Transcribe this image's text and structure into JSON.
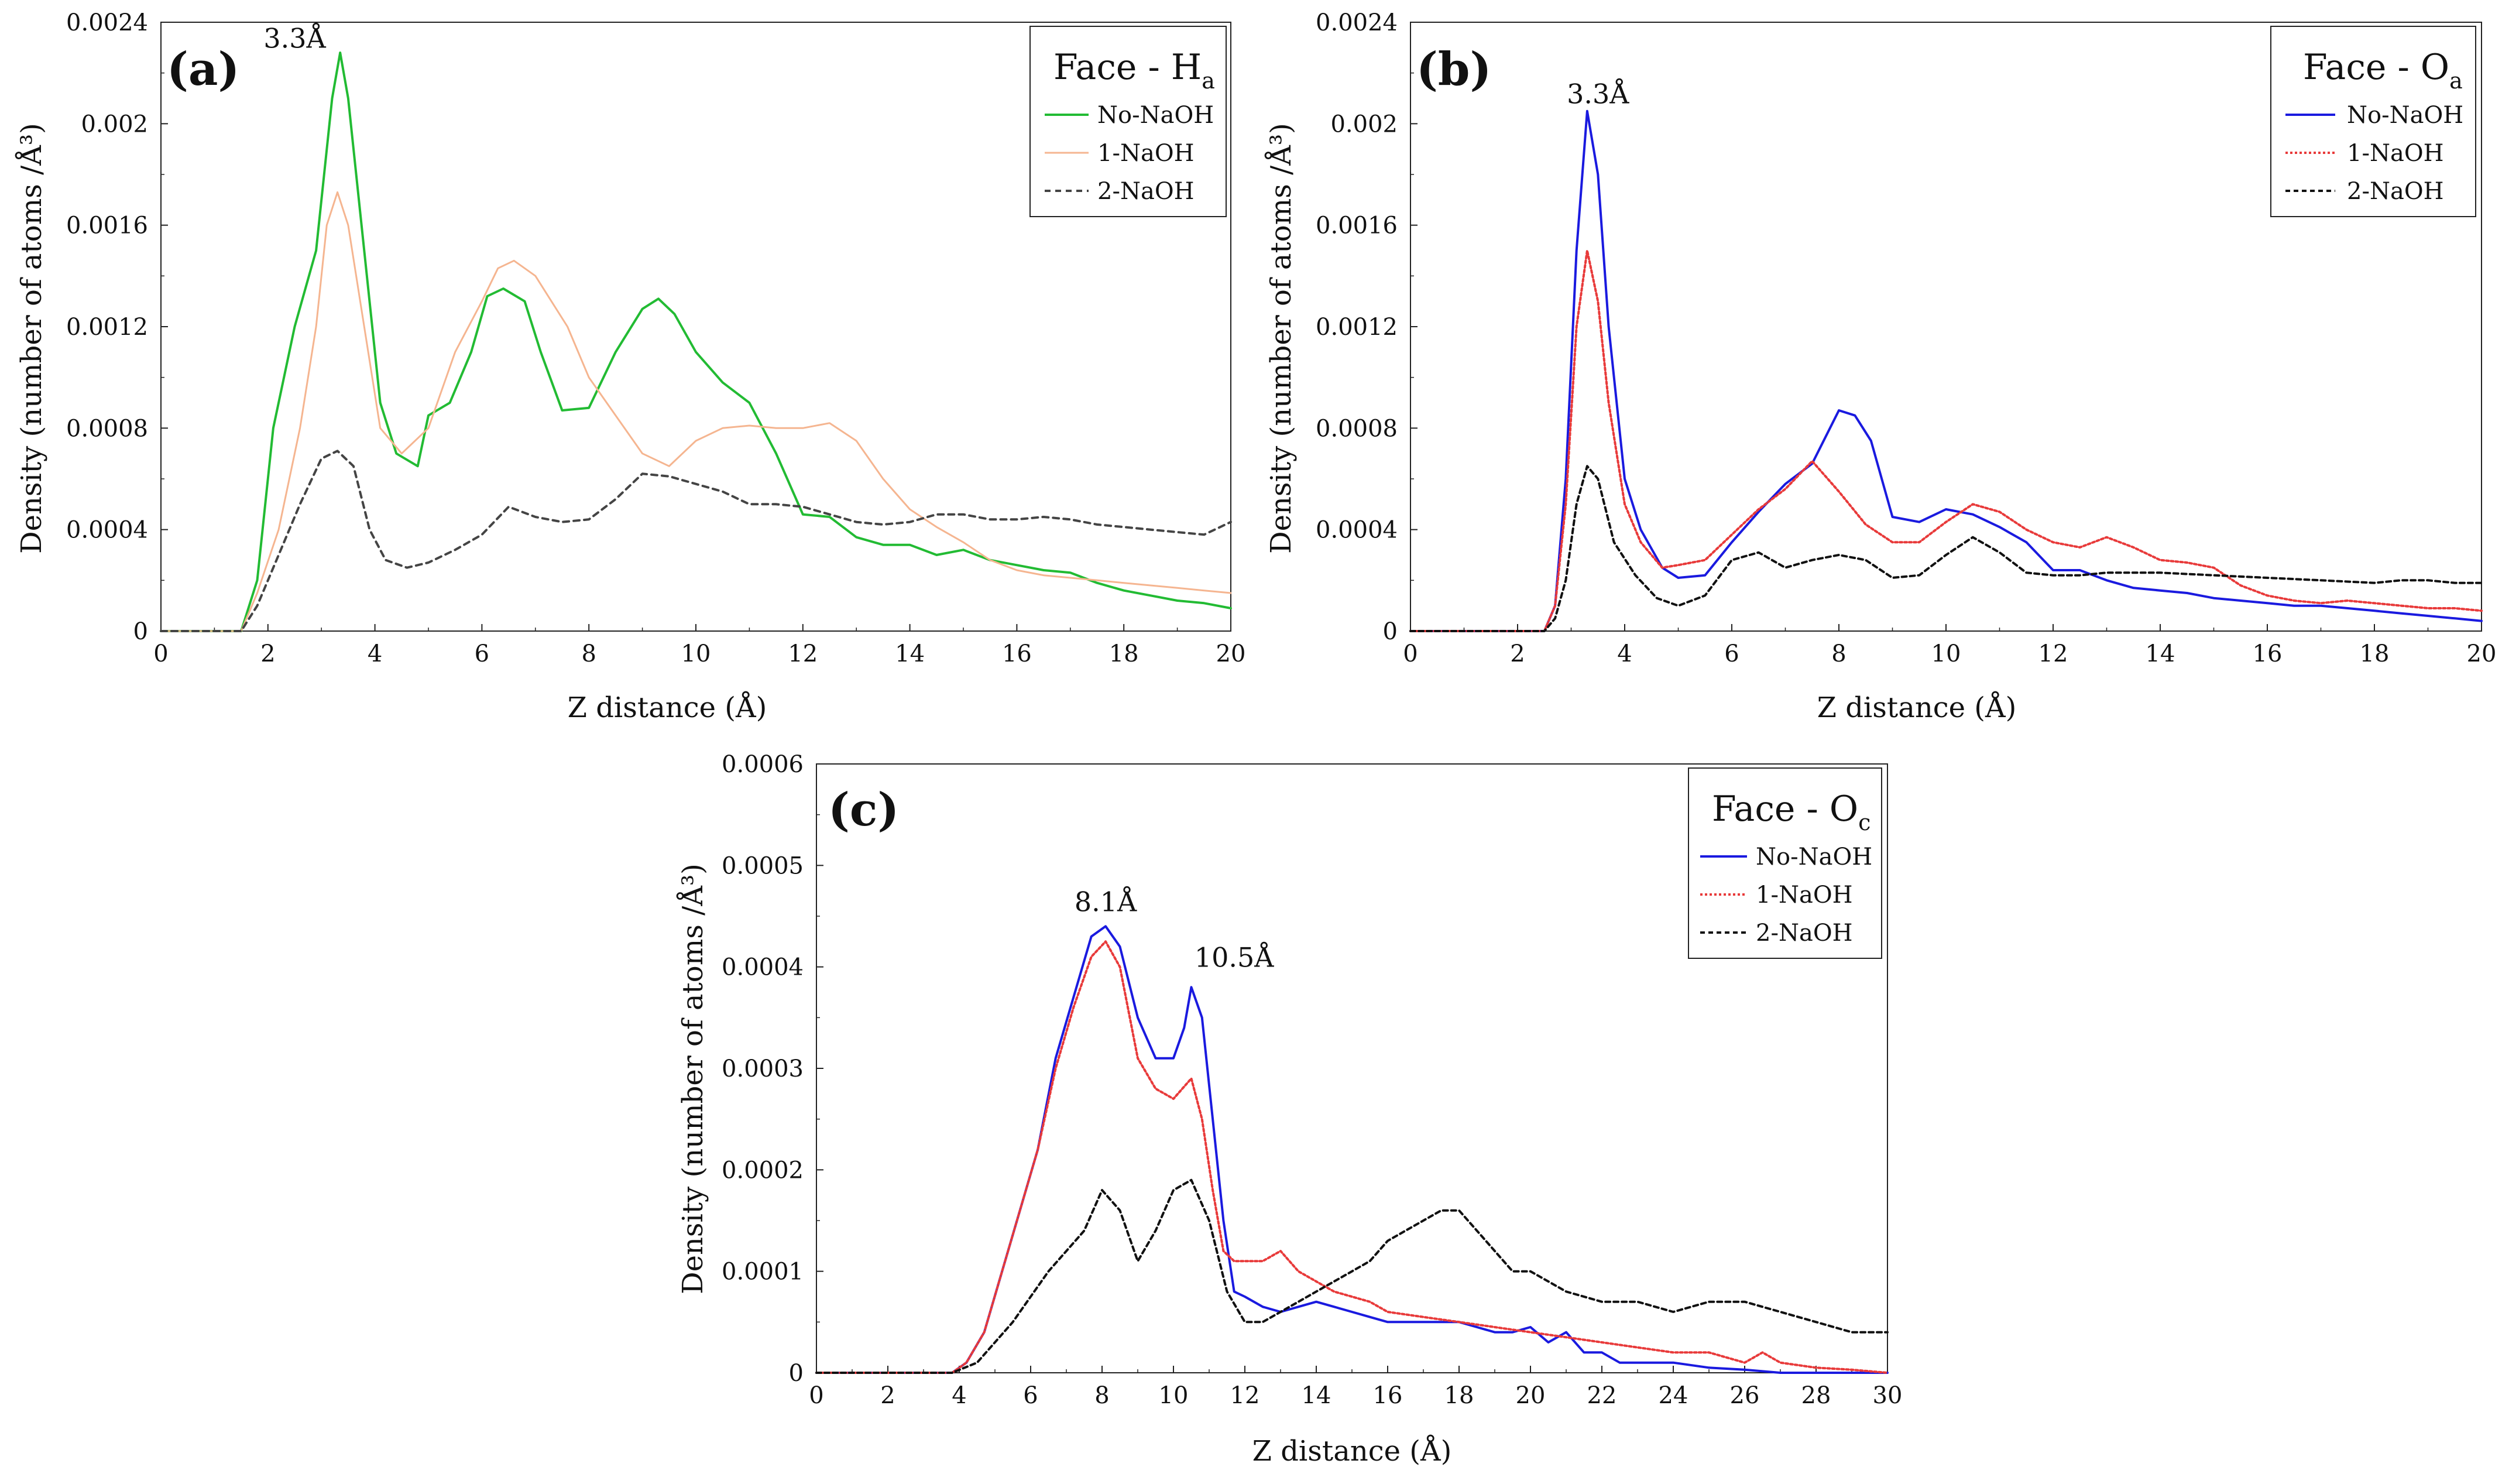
{
  "figure": {
    "panels": [
      "a",
      "b",
      "c"
    ]
  },
  "chart_data": [
    {
      "id": "a",
      "type": "line",
      "panel_label": "(a)",
      "title": "Face - H",
      "title_sub": "a",
      "xlabel": "Z distance (Å)",
      "ylabel": "Density (number of atoms /Å³)",
      "xlim": [
        0,
        20
      ],
      "ylim": [
        0,
        0.0024
      ],
      "xticks": [
        0,
        2,
        4,
        6,
        8,
        10,
        12,
        14,
        16,
        18,
        20
      ],
      "yticks": [
        "0",
        "0.0004",
        "0.0008",
        "0.0012",
        "0.0016",
        "0.002",
        "0.0024"
      ],
      "ytick_values": [
        0,
        0.0004,
        0.0008,
        0.0012,
        0.0016,
        0.002,
        0.0024
      ],
      "annotations": [
        {
          "text": "3.3Å",
          "x": 2.5,
          "y": 0.0023
        }
      ],
      "legend_position": "top-right",
      "series": [
        {
          "name": "No-NaOH",
          "color": "#22bb33",
          "dash": "solid",
          "width": 4,
          "x": [
            0,
            1.5,
            1.8,
            2.1,
            2.5,
            2.9,
            3.2,
            3.35,
            3.5,
            3.8,
            4.1,
            4.4,
            4.8,
            5.0,
            5.4,
            5.8,
            6.1,
            6.4,
            6.8,
            7.1,
            7.5,
            8.0,
            8.5,
            9.0,
            9.3,
            9.6,
            10.0,
            10.5,
            11.0,
            11.5,
            12.0,
            12.5,
            13.0,
            13.5,
            14.0,
            14.5,
            15.0,
            15.5,
            16.0,
            16.5,
            17.0,
            17.5,
            18.0,
            18.5,
            19.0,
            19.5,
            20.0
          ],
          "y": [
            0,
            0,
            0.0002,
            0.0008,
            0.0012,
            0.0015,
            0.0021,
            0.00228,
            0.0021,
            0.0015,
            0.0009,
            0.0007,
            0.00065,
            0.00085,
            0.0009,
            0.0011,
            0.00132,
            0.00135,
            0.0013,
            0.0011,
            0.00087,
            0.00088,
            0.0011,
            0.00127,
            0.00131,
            0.00125,
            0.0011,
            0.00098,
            0.0009,
            0.0007,
            0.00046,
            0.00045,
            0.00037,
            0.00034,
            0.00034,
            0.0003,
            0.00032,
            0.00028,
            0.00026,
            0.00024,
            0.00023,
            0.00019,
            0.00016,
            0.00014,
            0.00012,
            0.00011,
            9e-05
          ]
        },
        {
          "name": "1-NaOH",
          "color": "#f5b590",
          "dash": "solid",
          "width": 3,
          "x": [
            0,
            1.5,
            1.8,
            2.2,
            2.6,
            2.9,
            3.1,
            3.3,
            3.5,
            3.8,
            4.1,
            4.5,
            5.0,
            5.5,
            6.0,
            6.3,
            6.6,
            7.0,
            7.3,
            7.6,
            8.0,
            8.5,
            9.0,
            9.5,
            10.0,
            10.5,
            11.0,
            11.5,
            12.0,
            12.5,
            13.0,
            13.5,
            14.0,
            14.5,
            15.0,
            15.5,
            16.0,
            16.5,
            17.0,
            17.5,
            18.0,
            18.5,
            19.0,
            19.5,
            20.0
          ],
          "y": [
            0,
            0,
            0.00015,
            0.0004,
            0.0008,
            0.0012,
            0.0016,
            0.00173,
            0.0016,
            0.0012,
            0.0008,
            0.0007,
            0.0008,
            0.0011,
            0.0013,
            0.00143,
            0.00146,
            0.0014,
            0.0013,
            0.0012,
            0.001,
            0.00085,
            0.0007,
            0.00065,
            0.00075,
            0.0008,
            0.00081,
            0.0008,
            0.0008,
            0.00082,
            0.00075,
            0.0006,
            0.00048,
            0.00041,
            0.00035,
            0.00028,
            0.00024,
            0.00022,
            0.00021,
            0.0002,
            0.00019,
            0.00018,
            0.00017,
            0.00016,
            0.00015
          ]
        },
        {
          "name": "2-NaOH",
          "color": "#444444",
          "dash": "10,8",
          "width": 4,
          "x": [
            0,
            1.5,
            1.8,
            2.2,
            2.6,
            3.0,
            3.3,
            3.6,
            3.9,
            4.2,
            4.6,
            5.0,
            5.5,
            6.0,
            6.5,
            7.0,
            7.5,
            8.0,
            8.5,
            9.0,
            9.5,
            10.0,
            10.5,
            11.0,
            11.5,
            12.0,
            12.5,
            13.0,
            13.5,
            14.0,
            14.5,
            15.0,
            15.5,
            16.0,
            16.5,
            17.0,
            17.5,
            18.0,
            18.5,
            19.0,
            19.5,
            20.0
          ],
          "y": [
            0,
            0,
            0.0001,
            0.0003,
            0.0005,
            0.00068,
            0.00071,
            0.00065,
            0.0004,
            0.00028,
            0.00025,
            0.00027,
            0.00032,
            0.00038,
            0.00049,
            0.00045,
            0.00043,
            0.00044,
            0.00052,
            0.00062,
            0.00061,
            0.00058,
            0.00055,
            0.0005,
            0.0005,
            0.00049,
            0.00046,
            0.00043,
            0.00042,
            0.00043,
            0.00046,
            0.00046,
            0.00044,
            0.00044,
            0.00045,
            0.00044,
            0.00042,
            0.00041,
            0.0004,
            0.00039,
            0.00038,
            0.00043
          ]
        }
      ]
    },
    {
      "id": "b",
      "type": "line",
      "panel_label": "(b)",
      "title": "Face - O",
      "title_sub": "a",
      "xlabel": "Z distance (Å)",
      "ylabel": "Density (number of atoms /Å³)",
      "xlim": [
        0,
        20
      ],
      "ylim": [
        0,
        0.0024
      ],
      "xticks": [
        0,
        2,
        4,
        6,
        8,
        10,
        12,
        14,
        16,
        18,
        20
      ],
      "yticks": [
        "0",
        "0.0004",
        "0.0008",
        "0.0012",
        "0.0016",
        "0.002",
        "0.0024"
      ],
      "ytick_values": [
        0,
        0.0004,
        0.0008,
        0.0012,
        0.0016,
        0.002,
        0.0024
      ],
      "annotations": [
        {
          "text": "3.3Å",
          "x": 3.5,
          "y": 0.00208
        }
      ],
      "legend_position": "top-right",
      "series": [
        {
          "name": "No-NaOH",
          "color": "#1a1adf",
          "dash": "solid",
          "width": 4,
          "x": [
            0,
            2.5,
            2.7,
            2.9,
            3.1,
            3.3,
            3.5,
            3.7,
            4.0,
            4.3,
            4.7,
            5.0,
            5.5,
            6.0,
            6.5,
            7.0,
            7.5,
            8.0,
            8.3,
            8.6,
            9.0,
            9.5,
            10.0,
            10.5,
            11.0,
            11.5,
            12.0,
            12.5,
            13.0,
            13.5,
            14.0,
            14.5,
            15.0,
            15.5,
            16.0,
            16.5,
            17.0,
            17.5,
            18.0,
            18.5,
            19.0,
            19.5,
            20.0
          ],
          "y": [
            0,
            0,
            0.0001,
            0.0006,
            0.0015,
            0.00205,
            0.0018,
            0.0012,
            0.0006,
            0.0004,
            0.00025,
            0.00021,
            0.00022,
            0.00035,
            0.00047,
            0.00058,
            0.00066,
            0.00087,
            0.00085,
            0.00075,
            0.00045,
            0.00043,
            0.00048,
            0.00046,
            0.00041,
            0.00035,
            0.00024,
            0.00024,
            0.0002,
            0.00017,
            0.00016,
            0.00015,
            0.00013,
            0.00012,
            0.00011,
            0.0001,
            0.0001,
            9e-05,
            8e-05,
            7e-05,
            6e-05,
            5e-05,
            4e-05
          ]
        },
        {
          "name": "1-NaOH",
          "color": "#e83a3a",
          "dash": "4,4",
          "width": 4,
          "x": [
            0,
            2.5,
            2.7,
            2.9,
            3.1,
            3.3,
            3.5,
            3.7,
            4.0,
            4.3,
            4.7,
            5.0,
            5.5,
            6.0,
            6.5,
            7.0,
            7.5,
            8.0,
            8.5,
            9.0,
            9.5,
            10.0,
            10.5,
            11.0,
            11.5,
            12.0,
            12.5,
            13.0,
            13.5,
            14.0,
            14.5,
            15.0,
            15.5,
            16.0,
            16.5,
            17.0,
            17.5,
            18.0,
            18.5,
            19.0,
            19.5,
            20.0
          ],
          "y": [
            0,
            0,
            0.0001,
            0.0005,
            0.0012,
            0.0015,
            0.0013,
            0.0009,
            0.0005,
            0.00035,
            0.00025,
            0.00026,
            0.00028,
            0.00038,
            0.00048,
            0.00056,
            0.00067,
            0.00055,
            0.00042,
            0.00035,
            0.00035,
            0.00043,
            0.0005,
            0.00047,
            0.0004,
            0.00035,
            0.00033,
            0.00037,
            0.00033,
            0.00028,
            0.00027,
            0.00025,
            0.00018,
            0.00014,
            0.00012,
            0.00011,
            0.00012,
            0.00011,
            0.0001,
            9e-05,
            9e-05,
            8e-05
          ]
        },
        {
          "name": "2-NaOH",
          "color": "#111111",
          "dash": "8,6",
          "width": 4,
          "x": [
            0,
            2.5,
            2.7,
            2.9,
            3.1,
            3.3,
            3.5,
            3.8,
            4.2,
            4.6,
            5.0,
            5.5,
            6.0,
            6.5,
            7.0,
            7.5,
            8.0,
            8.5,
            9.0,
            9.5,
            10.0,
            10.5,
            11.0,
            11.5,
            12.0,
            12.5,
            13.0,
            14.0,
            15.0,
            16.0,
            17.0,
            18.0,
            18.5,
            19.0,
            19.5,
            20.0
          ],
          "y": [
            0,
            0,
            5e-05,
            0.0002,
            0.0005,
            0.00065,
            0.0006,
            0.00035,
            0.00022,
            0.00013,
            0.0001,
            0.00014,
            0.00028,
            0.00031,
            0.00025,
            0.00028,
            0.0003,
            0.00028,
            0.00021,
            0.00022,
            0.0003,
            0.00037,
            0.00031,
            0.00023,
            0.00022,
            0.00022,
            0.00023,
            0.00023,
            0.00022,
            0.00021,
            0.0002,
            0.00019,
            0.0002,
            0.0002,
            0.00019,
            0.00019
          ]
        }
      ]
    },
    {
      "id": "c",
      "type": "line",
      "panel_label": "(c)",
      "title": "Face - O",
      "title_sub": "c",
      "xlabel": "Z distance (Å)",
      "ylabel": "Density (number of atoms /Å³)",
      "xlim": [
        0,
        30
      ],
      "ylim": [
        0,
        0.0006
      ],
      "xticks": [
        0,
        2,
        4,
        6,
        8,
        10,
        12,
        14,
        16,
        18,
        20,
        22,
        24,
        26,
        28,
        30
      ],
      "yticks": [
        "0",
        "0.0001",
        "0.0002",
        "0.0003",
        "0.0004",
        "0.0005",
        "0.0006"
      ],
      "ytick_values": [
        0,
        0.0001,
        0.0002,
        0.0003,
        0.0004,
        0.0005,
        0.0006
      ],
      "annotations": [
        {
          "text": "8.1Å",
          "x": 8.1,
          "y": 0.000455
        },
        {
          "text": "10.5Å",
          "x": 11.7,
          "y": 0.0004
        }
      ],
      "legend_position": "top-right",
      "series": [
        {
          "name": "No-NaOH",
          "color": "#1a1adf",
          "dash": "solid",
          "width": 4,
          "x": [
            0,
            3.8,
            4.2,
            4.7,
            5.2,
            5.7,
            6.2,
            6.7,
            7.2,
            7.7,
            8.1,
            8.5,
            9.0,
            9.5,
            10.0,
            10.3,
            10.5,
            10.8,
            11.1,
            11.4,
            11.7,
            12.0,
            12.5,
            13.0,
            13.5,
            14.0,
            14.5,
            15.0,
            15.5,
            16.0,
            16.5,
            17.0,
            17.5,
            18.0,
            18.5,
            19.0,
            19.5,
            20.0,
            20.5,
            21.0,
            21.5,
            22.0,
            22.5,
            23.0,
            24.0,
            25.0,
            26.0,
            27.0,
            28.0,
            30.0
          ],
          "y": [
            0,
            0,
            1e-05,
            4e-05,
            0.0001,
            0.00016,
            0.00022,
            0.00031,
            0.00037,
            0.00043,
            0.00044,
            0.00042,
            0.00035,
            0.00031,
            0.00031,
            0.00034,
            0.00038,
            0.00035,
            0.00025,
            0.00015,
            8e-05,
            7.5e-05,
            6.5e-05,
            6e-05,
            6.5e-05,
            7e-05,
            6.5e-05,
            6e-05,
            5.5e-05,
            5e-05,
            5e-05,
            5e-05,
            5e-05,
            5e-05,
            4.5e-05,
            4e-05,
            4e-05,
            4.5e-05,
            3e-05,
            4e-05,
            2e-05,
            2e-05,
            1e-05,
            1e-05,
            1e-05,
            5e-06,
            3e-06,
            0,
            0,
            0
          ]
        },
        {
          "name": "1-NaOH",
          "color": "#e83a3a",
          "dash": "4,4",
          "width": 4,
          "x": [
            0,
            3.8,
            4.2,
            4.7,
            5.2,
            5.7,
            6.2,
            6.7,
            7.2,
            7.7,
            8.1,
            8.5,
            9.0,
            9.5,
            10.0,
            10.5,
            10.8,
            11.1,
            11.4,
            11.7,
            12.0,
            12.5,
            13.0,
            13.5,
            14.0,
            14.5,
            15.0,
            15.5,
            16.0,
            17.0,
            18.0,
            19.0,
            20.0,
            21.0,
            22.0,
            23.0,
            24.0,
            25.0,
            26.0,
            26.5,
            27.0,
            28.0,
            29.0,
            30.0
          ],
          "y": [
            0,
            0,
            1e-05,
            4e-05,
            0.0001,
            0.00016,
            0.00022,
            0.0003,
            0.00036,
            0.00041,
            0.000425,
            0.0004,
            0.00031,
            0.00028,
            0.00027,
            0.00029,
            0.00025,
            0.00018,
            0.00012,
            0.00011,
            0.00011,
            0.00011,
            0.00012,
            0.0001,
            9e-05,
            8e-05,
            7.5e-05,
            7e-05,
            6e-05,
            5.5e-05,
            5e-05,
            4.5e-05,
            4e-05,
            3.5e-05,
            3e-05,
            2.5e-05,
            2e-05,
            2e-05,
            1e-05,
            2e-05,
            1e-05,
            5e-06,
            3e-06,
            0
          ]
        },
        {
          "name": "2-NaOH",
          "color": "#111111",
          "dash": "8,6",
          "width": 4,
          "x": [
            0,
            3.8,
            4.5,
            5.5,
            6.5,
            7.5,
            8.0,
            8.5,
            9.0,
            9.5,
            10.0,
            10.5,
            11.0,
            11.5,
            12.0,
            12.5,
            13.0,
            13.5,
            14.0,
            14.5,
            15.0,
            15.5,
            16.0,
            16.5,
            17.0,
            17.5,
            18.0,
            18.5,
            19.0,
            19.5,
            20.0,
            20.5,
            21.0,
            22.0,
            23.0,
            24.0,
            25.0,
            26.0,
            27.0,
            28.0,
            29.0,
            30.0
          ],
          "y": [
            0,
            0,
            1e-05,
            5e-05,
            0.0001,
            0.00014,
            0.00018,
            0.00016,
            0.00011,
            0.00014,
            0.00018,
            0.00019,
            0.00015,
            8e-05,
            5e-05,
            5e-05,
            6e-05,
            7e-05,
            8e-05,
            9e-05,
            0.0001,
            0.00011,
            0.00013,
            0.00014,
            0.00015,
            0.00016,
            0.00016,
            0.00014,
            0.00012,
            0.0001,
            0.0001,
            9e-05,
            8e-05,
            7e-05,
            7e-05,
            6e-05,
            7e-05,
            7e-05,
            6e-05,
            5e-05,
            4e-05,
            4e-05
          ]
        }
      ]
    }
  ]
}
